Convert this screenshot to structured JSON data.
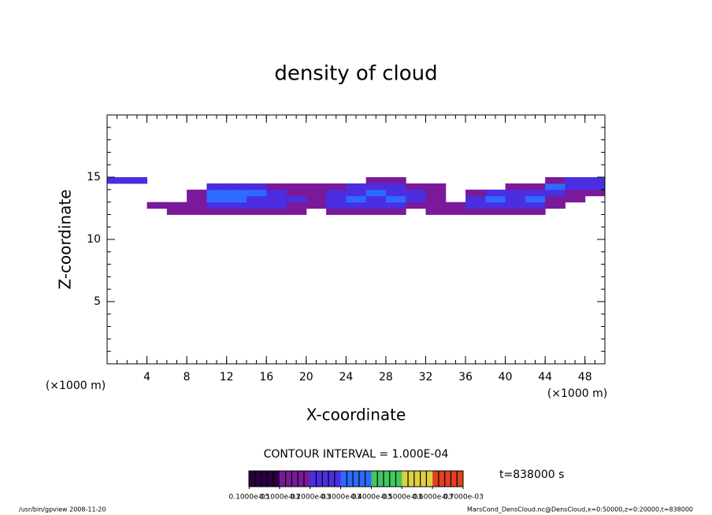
{
  "chart_data": {
    "type": "contour",
    "title": "density of cloud",
    "x_label": "X-coordinate",
    "y_label": "Z-coordinate",
    "x_unit": "(×1000 m)",
    "y_unit": "(×1000 m)",
    "xlim": [
      0,
      50
    ],
    "ylim": [
      0,
      20
    ],
    "xticks": [
      4,
      8,
      12,
      16,
      20,
      24,
      28,
      32,
      36,
      40,
      44,
      48
    ],
    "yticks": [
      5,
      10,
      15
    ],
    "minor_tick_step": 1,
    "x_edges": [
      0,
      2,
      4,
      6,
      8,
      10,
      12,
      14,
      16,
      18,
      20,
      22,
      24,
      26,
      28,
      30,
      32,
      34,
      36,
      38,
      40,
      42,
      44,
      46,
      48,
      50
    ],
    "z_edges": [
      12,
      12.5,
      13,
      13.5,
      14,
      14.5,
      15
    ],
    "values": [
      [
        0,
        0,
        0,
        0.0001,
        0.0001,
        0.0001,
        0.0001,
        0.0001,
        0.0001,
        0.0001,
        0,
        0.0001,
        0.0001,
        0.0001,
        0.0001,
        0,
        0.0001,
        0.0001,
        0.0001,
        0.0001,
        0.0001,
        0.0001,
        0,
        0,
        0
      ],
      [
        0,
        0,
        0.0001,
        0.0001,
        0.0001,
        0.0002,
        0.0002,
        0.0002,
        0.0002,
        0.0001,
        0.0001,
        0.0002,
        0.0002,
        0.0002,
        0.0002,
        0.0001,
        0.0001,
        0.0001,
        0.0002,
        0.0002,
        0.0002,
        0.0002,
        0.0001,
        0,
        0
      ],
      [
        0,
        0,
        0,
        0,
        0.0001,
        0.0003,
        0.0003,
        0.0002,
        0.0002,
        0.0002,
        0.0001,
        0.0002,
        0.0003,
        0.0002,
        0.0003,
        0.0002,
        0.0001,
        0,
        0.0002,
        0.0003,
        0.0002,
        0.0003,
        0.0001,
        0.0001,
        0
      ],
      [
        0,
        0,
        0,
        0,
        0.0001,
        0.0003,
        0.0003,
        0.0003,
        0.0002,
        0.0001,
        0.0001,
        0.0002,
        0.0002,
        0.0003,
        0.0002,
        0.0002,
        0.0001,
        0,
        0.0001,
        0.0002,
        0.0002,
        0.0002,
        0.0002,
        0.0001,
        0.0001
      ],
      [
        0,
        0,
        0,
        0,
        0,
        0.0002,
        0.0002,
        0.0002,
        0.0001,
        0.0001,
        0.0001,
        0.0001,
        0.0002,
        0.0002,
        0.0002,
        0.0001,
        0.0001,
        0,
        0,
        0,
        0.0001,
        0.0001,
        0.0003,
        0.0002,
        0.0002
      ],
      [
        0.0002,
        0.0002,
        0,
        0,
        0,
        0,
        0,
        0,
        0,
        0,
        0,
        0,
        0,
        0.0001,
        0.0001,
        0,
        0,
        0,
        0,
        0,
        0,
        0,
        0.0001,
        0.0002,
        0.0002
      ]
    ],
    "contour_interval_text": "CONTOUR INTERVAL = 1.000E-04",
    "contour_interval": 0.0001,
    "colorbar": {
      "lim": [
        0,
        0.0007
      ],
      "colors": [
        "#2a0040",
        "#7a1a9a",
        "#4a2ee0",
        "#2f6aff",
        "#40c860",
        "#e0d040",
        "#e04020"
      ],
      "ticks": [
        {
          "value": 1e-06,
          "label": "0.1000e-05"
        },
        {
          "value": 0.0001,
          "label": "0.1000e-03"
        },
        {
          "value": 0.0002,
          "label": "0.2000e-03"
        },
        {
          "value": 0.0003,
          "label": "0.3000e-03"
        },
        {
          "value": 0.0004,
          "label": "0.4000e-03"
        },
        {
          "value": 0.0005,
          "label": "0.5000e-03"
        },
        {
          "value": 0.0006,
          "label": "0.6000e-03"
        },
        {
          "value": 0.0007,
          "label": "0.7000e-03"
        }
      ]
    },
    "time_label": "t=838000 s",
    "footer_left": "/usr/bin/gpview  2008-11-20",
    "footer_right": "MarsCond_DensCloud.nc@DensCloud,x=0:50000,z=0:20000,t=838000"
  }
}
